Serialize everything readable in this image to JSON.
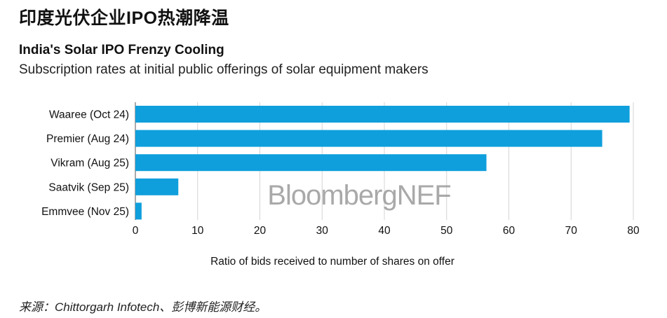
{
  "page": {
    "headline": "印度光伏企业IPO热潮降温",
    "source": "来源：Chittorgarh Infotech、彭博新能源财经。"
  },
  "chart_data": {
    "type": "bar",
    "orientation": "horizontal",
    "title": "India's Solar IPO Frenzy Cooling",
    "subtitle": "Subscription rates at initial public offerings of solar equipment makers",
    "categories": [
      "Waaree (Oct 24)",
      "Premier (Aug 24)",
      "Vikram (Aug 25)",
      "Saatvik (Sep 25)",
      "Emmvee (Nov 25)"
    ],
    "values": [
      79.4,
      75.0,
      56.4,
      6.9,
      1.0
    ],
    "xlabel": "Ratio of bids received to number of shares on offer",
    "ylabel": "",
    "xlim": [
      0,
      80
    ],
    "xticks": [
      0,
      10,
      20,
      30,
      40,
      50,
      60,
      70,
      80
    ],
    "grid": "vertical",
    "bar_color": "#0f9fdc",
    "watermark": "BloombergNEF"
  }
}
